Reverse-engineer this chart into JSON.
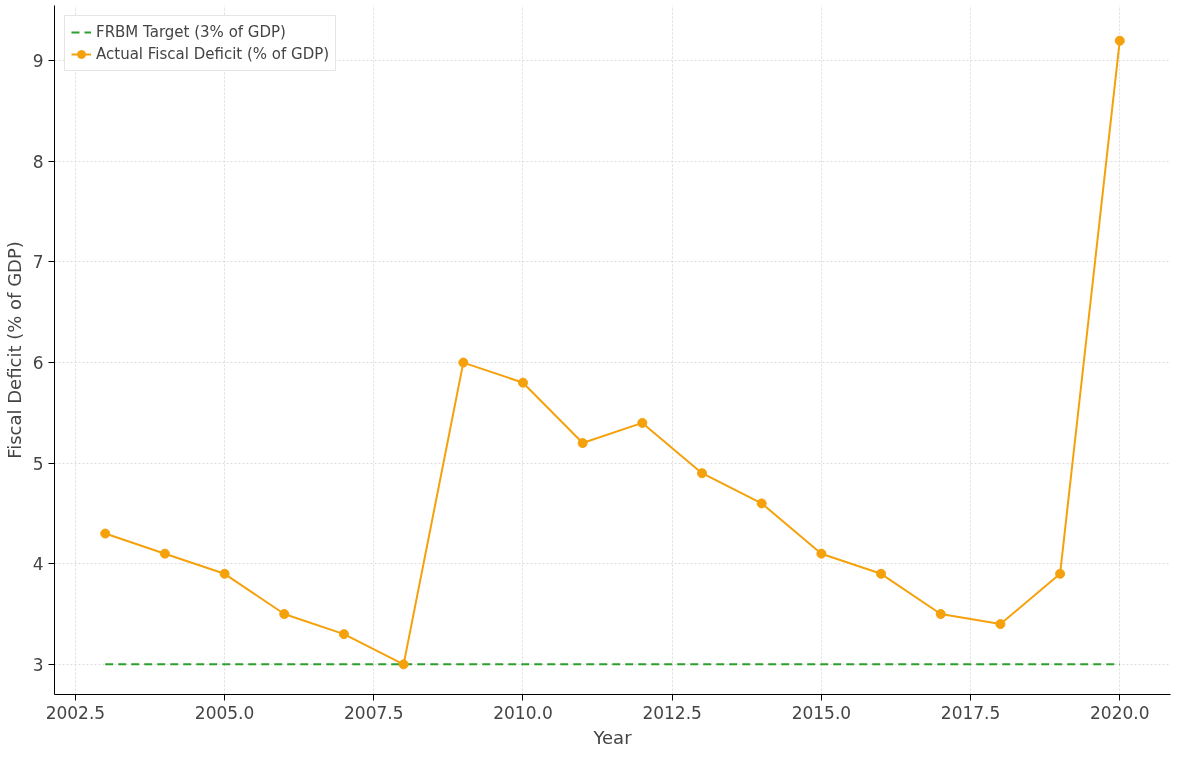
{
  "chart_data": {
    "type": "line",
    "xlabel": "Year",
    "ylabel": "Fiscal Deficit (% of GDP)",
    "xlim": [
      2002.15,
      2020.85
    ],
    "ylim": [
      2.7,
      9.55
    ],
    "xticks": [
      {
        "value": 2002.5,
        "label": "2002.5"
      },
      {
        "value": 2005,
        "label": "2005.0"
      },
      {
        "value": 2007.5,
        "label": "2007.5"
      },
      {
        "value": 2010,
        "label": "2010.0"
      },
      {
        "value": 2012.5,
        "label": "2012.5"
      },
      {
        "value": 2015,
        "label": "2015.0"
      },
      {
        "value": 2017.5,
        "label": "2017.5"
      },
      {
        "value": 2020,
        "label": "2020.0"
      }
    ],
    "yticks": [
      3,
      4,
      5,
      6,
      7,
      8,
      9
    ],
    "grid": true,
    "legend": "top left",
    "series": [
      {
        "name": "FRBM Target (3% of GDP)",
        "color": "#2ca02c",
        "x": [
          2003,
          2020
        ],
        "values": [
          3,
          3
        ],
        "line_style": "dashed",
        "marker": "none"
      },
      {
        "name": "Actual Fiscal Deficit (% of GDP)",
        "color": "#f5a10c",
        "x": [
          2003,
          2004,
          2005,
          2006,
          2007,
          2008,
          2009,
          2010,
          2011,
          2012,
          2013,
          2014,
          2015,
          2016,
          2017,
          2018,
          2019,
          2020
        ],
        "values": [
          4.3,
          4.1,
          3.9,
          3.5,
          3.3,
          3.0,
          6.0,
          5.8,
          5.2,
          5.4,
          4.9,
          4.6,
          4.1,
          3.9,
          3.5,
          3.4,
          3.9,
          9.2
        ],
        "line_style": "solid",
        "marker": "circle"
      }
    ]
  }
}
